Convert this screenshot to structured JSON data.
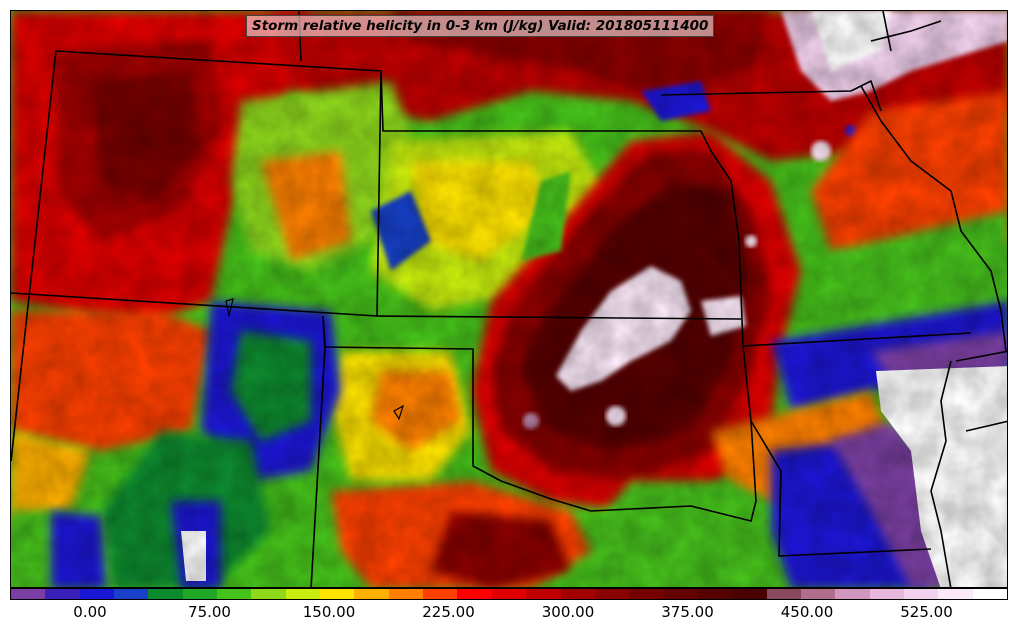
{
  "title": "Storm relative helicity in 0-3 km (J/kg) Valid: 201805111400",
  "colorbar": {
    "colors": [
      "#7b3fa3",
      "#3a1fb8",
      "#1a16d6",
      "#1840c8",
      "#0c8a2e",
      "#20a826",
      "#46c31a",
      "#8fd81a",
      "#c8ee10",
      "#ffe400",
      "#ffb000",
      "#ff8000",
      "#ff4000",
      "#ff0000",
      "#e00000",
      "#c00000",
      "#a30000",
      "#8a0000",
      "#760000",
      "#640000",
      "#560000",
      "#4a0000",
      "#8a4a5e",
      "#b06e8c",
      "#d096be",
      "#e8b8dc",
      "#f3d2ee",
      "#fbe8f8",
      "#ffffff"
    ],
    "tick_labels": [
      "0.00",
      "75.00",
      "150.00",
      "225.00",
      "300.00",
      "375.00",
      "450.00",
      "525.00"
    ]
  }
}
